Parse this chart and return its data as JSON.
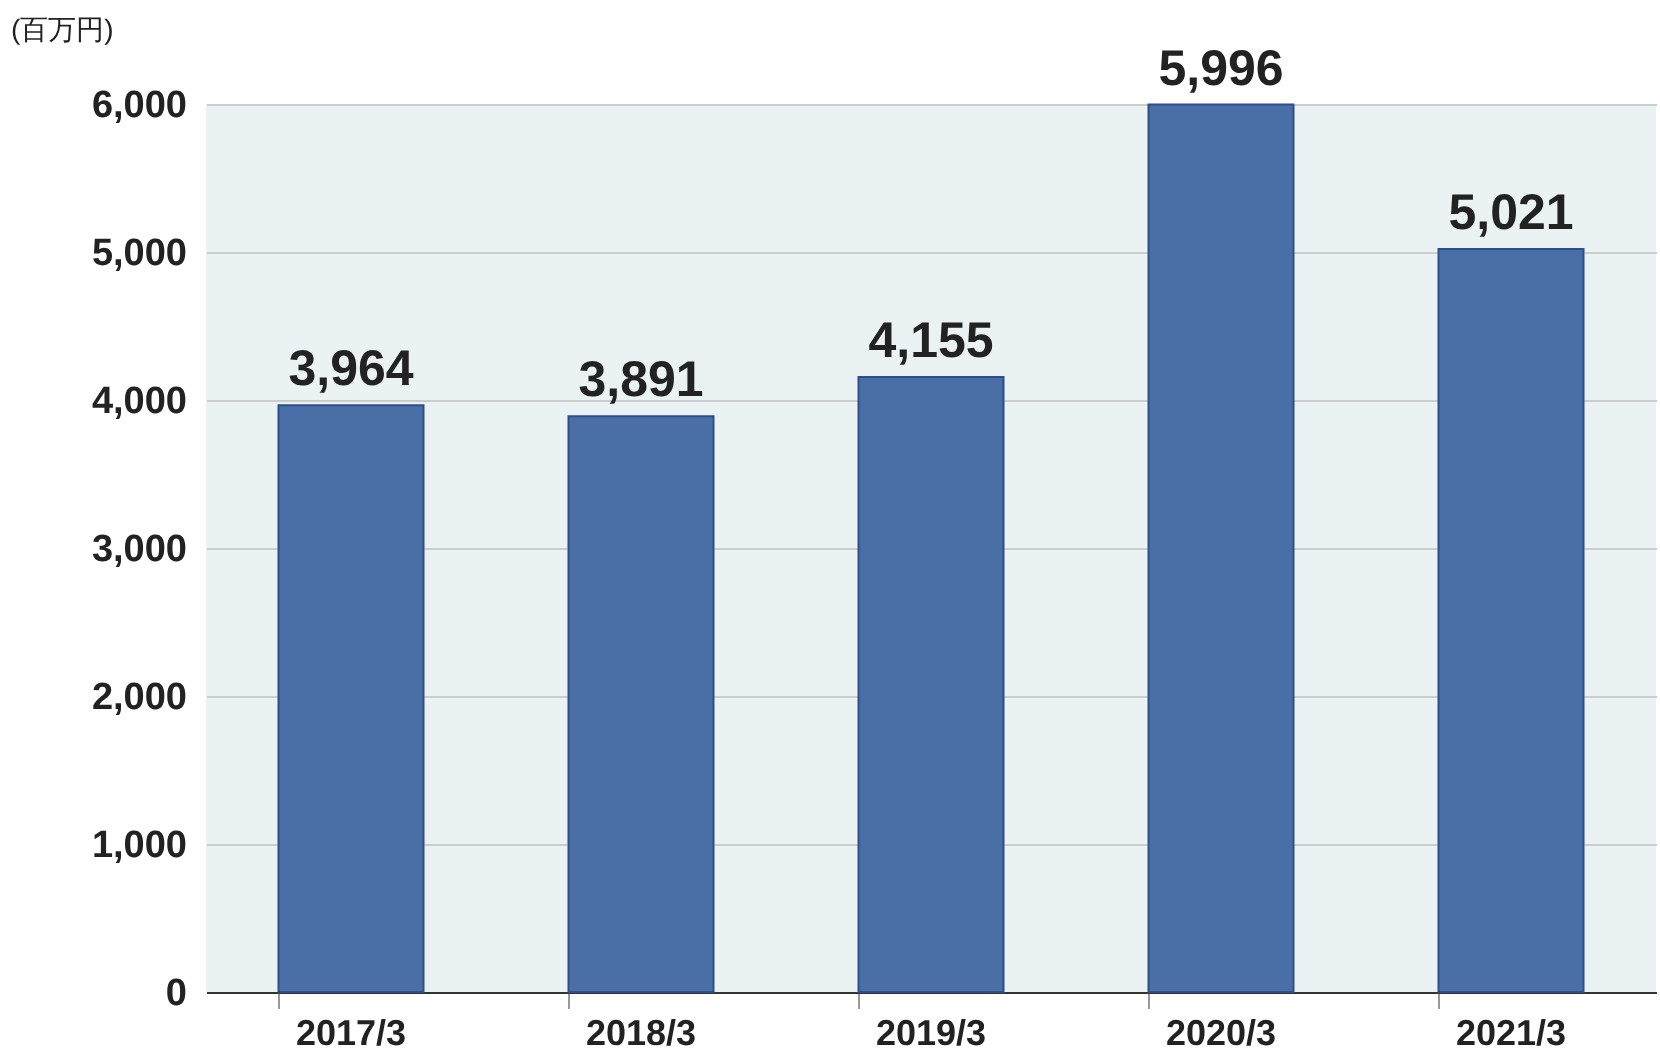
{
  "chart_data": {
    "type": "bar",
    "ylabel": "(百万円)",
    "categories": [
      "2017/3",
      "2018/3",
      "2019/3",
      "2020/3",
      "2021/3"
    ],
    "values": [
      3964,
      3891,
      4155,
      5996,
      5021
    ],
    "value_labels": [
      "3,964",
      "3,891",
      "4,155",
      "5,996",
      "5,021"
    ],
    "color": "#4a6fa6",
    "ylim": [
      0,
      6000
    ],
    "yticks": [
      0,
      {
        "value": 1000,
        "label": "1,000"
      },
      {
        "value": 2000,
        "label": "2,000"
      },
      {
        "value": 3000,
        "label": "3,000"
      },
      {
        "value": 4000,
        "label": "4,000"
      },
      {
        "value": 5000,
        "label": "5,000"
      },
      {
        "value": 6000,
        "label": "6,000"
      }
    ],
    "grid": "y"
  }
}
